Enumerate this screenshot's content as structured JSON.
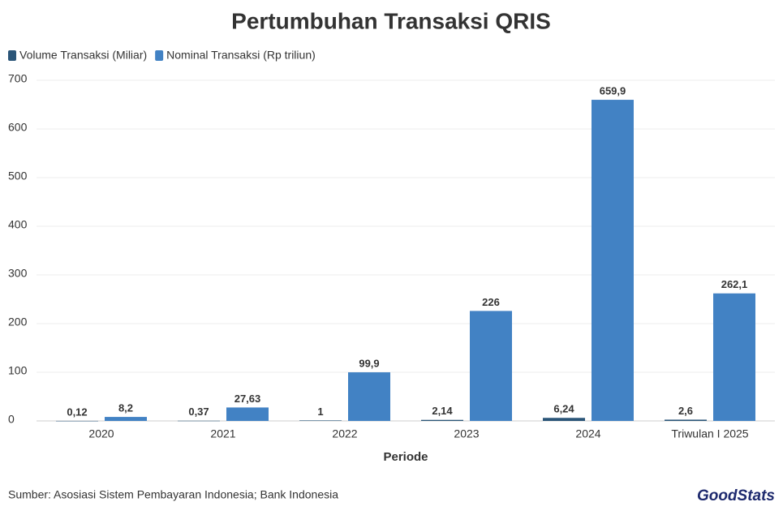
{
  "chart_data": {
    "type": "bar",
    "title": "Pertumbuhan Transaksi QRIS",
    "categories": [
      "2020",
      "2021",
      "2022",
      "2023",
      "2024",
      "Triwulan I 2025"
    ],
    "series": [
      {
        "name": "Volume Transaksi (Miliar)",
        "color": "#2a5578",
        "values": [
          0.12,
          0.37,
          1,
          2.14,
          6.24,
          2.6
        ],
        "value_labels": [
          "0,12",
          "0,37",
          "1",
          "2,14",
          "6,24",
          "2,6"
        ]
      },
      {
        "name": "Nominal Transaksi (Rp triliun)",
        "color": "#4282c4",
        "values": [
          8.2,
          27.63,
          99.9,
          226,
          659.9,
          262.1
        ],
        "value_labels": [
          "8,2",
          "27,63",
          "99,9",
          "226",
          "659,9",
          "262,1"
        ]
      }
    ],
    "ylim": [
      0,
      700
    ],
    "yticks": [
      0,
      100,
      200,
      300,
      400,
      500,
      600,
      700
    ],
    "grid": true,
    "xlabel": "Periode",
    "legend": "top-left",
    "source": "Sumber: Asosiasi Sistem Pembayaran Indonesia; Bank Indonesia",
    "logo": "GoodStats"
  }
}
